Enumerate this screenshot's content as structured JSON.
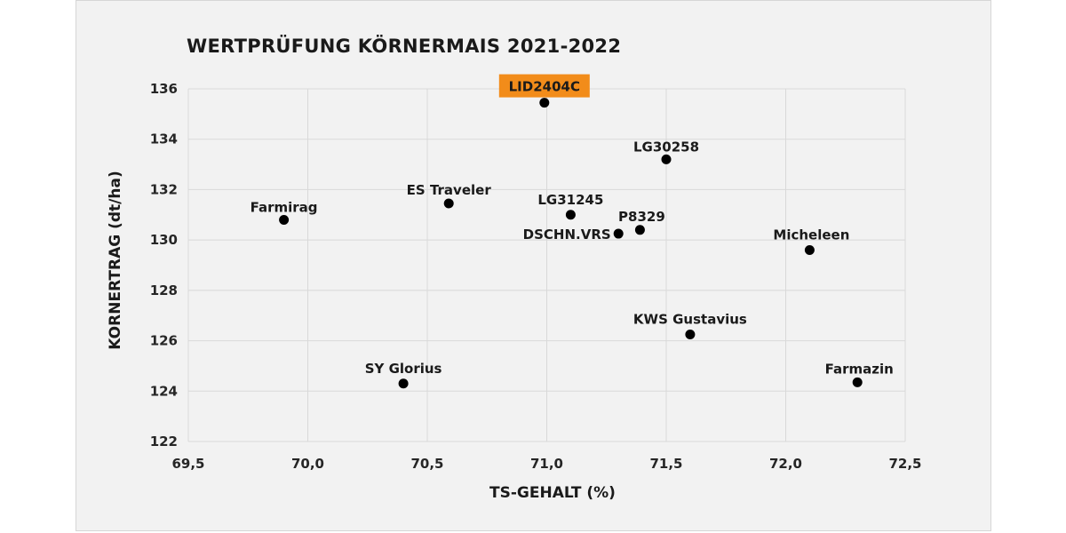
{
  "chart_data": {
    "type": "scatter",
    "title": "WERTPRÜFUNG KÖRNERMAIS 2021-2022",
    "xlabel": "TS-GEHALT (%)",
    "ylabel": "KORNERTRAG (dt/ha)",
    "xlim": [
      69.5,
      72.5
    ],
    "ylim": [
      122,
      136
    ],
    "x_ticks": [
      "69,5",
      "70,0",
      "70,5",
      "71,0",
      "71,5",
      "72,0",
      "72,5"
    ],
    "y_ticks": [
      "122",
      "124",
      "126",
      "128",
      "130",
      "132",
      "134",
      "136"
    ],
    "x_tick_values": [
      69.5,
      70.0,
      70.5,
      71.0,
      71.5,
      72.0,
      72.5
    ],
    "y_tick_values": [
      122,
      124,
      126,
      128,
      130,
      132,
      134,
      136
    ],
    "grid": true,
    "point_color": "#000000",
    "highlight_color": "#f28c1a",
    "points": [
      {
        "label": "LID2404C",
        "x": 70.99,
        "y": 135.45,
        "highlight": true
      },
      {
        "label": "LG30258",
        "x": 71.5,
        "y": 133.2
      },
      {
        "label": "ES Traveler",
        "x": 70.59,
        "y": 131.45
      },
      {
        "label": "Farmirag",
        "x": 69.9,
        "y": 130.8
      },
      {
        "label": "LG31245",
        "x": 71.1,
        "y": 131.0
      },
      {
        "label": "P8329",
        "x": 71.39,
        "y": 130.4
      },
      {
        "label": "DSCHN.VRS",
        "x": 71.3,
        "y": 130.25
      },
      {
        "label": "Micheleen",
        "x": 72.1,
        "y": 129.6
      },
      {
        "label": "KWS Gustavius",
        "x": 71.6,
        "y": 126.25
      },
      {
        "label": "SY Glorius",
        "x": 70.4,
        "y": 124.3
      },
      {
        "label": "Farmazin",
        "x": 72.3,
        "y": 124.35
      }
    ]
  }
}
